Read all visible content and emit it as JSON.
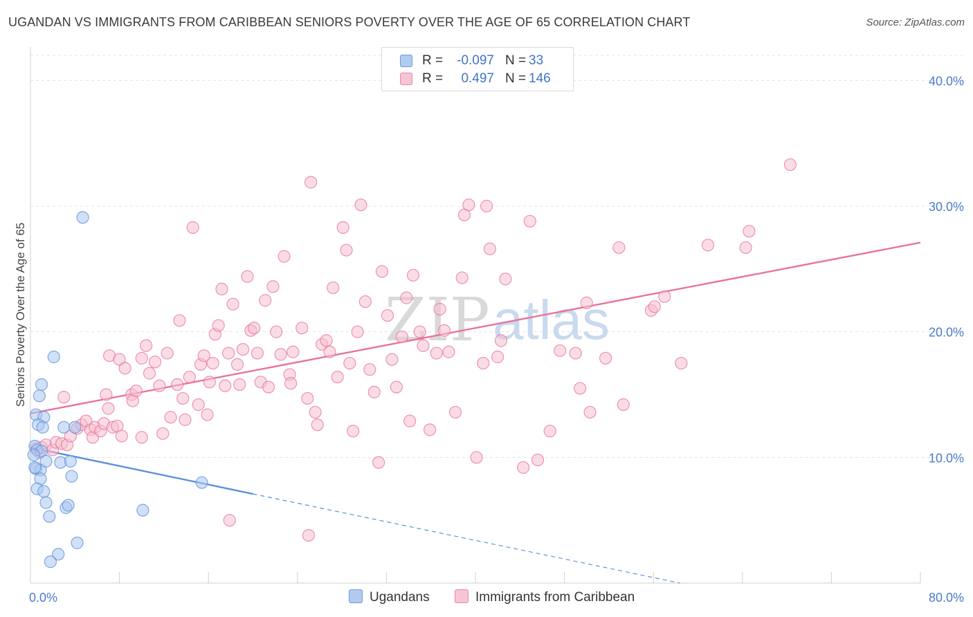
{
  "chart_data": {
    "type": "scatter",
    "title": "UGANDAN VS IMMIGRANTS FROM CARIBBEAN SENIORS POVERTY OVER THE AGE OF 65 CORRELATION CHART",
    "source": "Source: ZipAtlas.com",
    "xlabel": "",
    "ylabel": "Seniors Poverty Over the Age of 65",
    "xlim": [
      0,
      80
    ],
    "ylim": [
      0,
      42
    ],
    "x_tick_labels": [
      "0.0%",
      "80.0%"
    ],
    "y_ticks": [
      10,
      20,
      30,
      40
    ],
    "y_tick_labels": [
      "10.0%",
      "20.0%",
      "30.0%",
      "40.0%"
    ],
    "grid": true,
    "watermark": [
      "ZIP",
      "atlas"
    ],
    "legend": {
      "rows": [
        {
          "r_label": "R =",
          "r_value": "-0.097",
          "n_label": "N =",
          "n_value": "33"
        },
        {
          "r_label": "R =",
          "r_value": "0.497",
          "n_label": "N =",
          "n_value": "146"
        }
      ]
    },
    "series": [
      {
        "name": "Ugandans",
        "color": "#5b8fd8",
        "fill": "#a9c6ee",
        "trend": {
          "x0": 0,
          "y0": 10.8,
          "x1": 20,
          "y1": 7.1,
          "dash_to_x": 80,
          "dash_to_y": -4.0
        },
        "points": [
          [
            4.7,
            29.1
          ],
          [
            0.5,
            13.4
          ],
          [
            1.0,
            15.8
          ],
          [
            2.1,
            18.0
          ],
          [
            0.8,
            14.9
          ],
          [
            1.2,
            13.2
          ],
          [
            0.7,
            12.6
          ],
          [
            1.1,
            12.4
          ],
          [
            3.0,
            12.4
          ],
          [
            4.0,
            12.4
          ],
          [
            0.4,
            10.9
          ],
          [
            0.6,
            10.6
          ],
          [
            1.0,
            10.5
          ],
          [
            0.5,
            9.1
          ],
          [
            0.9,
            9.0
          ],
          [
            1.4,
            9.7
          ],
          [
            2.7,
            9.6
          ],
          [
            3.6,
            9.7
          ],
          [
            0.4,
            9.2
          ],
          [
            0.9,
            8.3
          ],
          [
            3.7,
            8.5
          ],
          [
            0.6,
            7.5
          ],
          [
            1.2,
            7.3
          ],
          [
            1.4,
            6.4
          ],
          [
            3.2,
            6.0
          ],
          [
            3.4,
            6.2
          ],
          [
            1.7,
            5.3
          ],
          [
            10.1,
            5.8
          ],
          [
            15.4,
            8.0
          ],
          [
            4.2,
            3.2
          ],
          [
            2.5,
            2.3
          ],
          [
            1.8,
            1.7
          ],
          [
            0.3,
            10.2
          ]
        ]
      },
      {
        "name": "Immigrants from Caribbean",
        "color": "#e8739a",
        "fill": "#f6bfd0",
        "trend": {
          "x0": 0,
          "y0": 13.5,
          "x1": 80,
          "y1": 27.1
        },
        "points": [
          [
            0.5,
            10.7
          ],
          [
            0.8,
            10.4
          ],
          [
            1.0,
            10.8
          ],
          [
            1.4,
            11.0
          ],
          [
            2.0,
            10.6
          ],
          [
            2.3,
            11.2
          ],
          [
            2.8,
            11.1
          ],
          [
            3.3,
            11.0
          ],
          [
            3.6,
            11.7
          ],
          [
            4.2,
            12.3
          ],
          [
            4.6,
            12.6
          ],
          [
            5.0,
            12.9
          ],
          [
            5.4,
            12.2
          ],
          [
            5.6,
            11.6
          ],
          [
            5.8,
            12.4
          ],
          [
            6.3,
            12.1
          ],
          [
            6.6,
            12.7
          ],
          [
            7.4,
            12.4
          ],
          [
            3.0,
            14.8
          ],
          [
            6.8,
            15.0
          ],
          [
            7.0,
            13.9
          ],
          [
            7.8,
            12.5
          ],
          [
            8.2,
            11.7
          ],
          [
            9.1,
            15.0
          ],
          [
            9.2,
            14.5
          ],
          [
            9.5,
            15.3
          ],
          [
            10.0,
            11.6
          ],
          [
            7.1,
            18.1
          ],
          [
            8.0,
            17.8
          ],
          [
            8.5,
            17.1
          ],
          [
            10.0,
            17.9
          ],
          [
            10.4,
            18.9
          ],
          [
            10.7,
            16.7
          ],
          [
            11.2,
            17.6
          ],
          [
            11.6,
            15.7
          ],
          [
            12.3,
            18.3
          ],
          [
            11.9,
            11.9
          ],
          [
            12.6,
            13.2
          ],
          [
            13.2,
            15.8
          ],
          [
            13.4,
            20.9
          ],
          [
            13.7,
            14.7
          ],
          [
            13.9,
            13.0
          ],
          [
            14.3,
            16.4
          ],
          [
            14.6,
            28.3
          ],
          [
            15.1,
            14.2
          ],
          [
            15.3,
            17.4
          ],
          [
            15.6,
            18.1
          ],
          [
            15.9,
            13.4
          ],
          [
            16.1,
            16.0
          ],
          [
            16.4,
            17.5
          ],
          [
            16.6,
            19.8
          ],
          [
            16.9,
            20.5
          ],
          [
            17.2,
            23.4
          ],
          [
            17.5,
            15.7
          ],
          [
            17.8,
            18.3
          ],
          [
            18.2,
            22.2
          ],
          [
            18.6,
            17.4
          ],
          [
            18.8,
            15.8
          ],
          [
            19.1,
            18.6
          ],
          [
            19.5,
            24.4
          ],
          [
            19.8,
            20.1
          ],
          [
            20.1,
            20.3
          ],
          [
            20.4,
            18.3
          ],
          [
            20.7,
            16.0
          ],
          [
            21.1,
            22.5
          ],
          [
            21.4,
            15.6
          ],
          [
            21.8,
            23.6
          ],
          [
            22.1,
            20.0
          ],
          [
            22.5,
            18.2
          ],
          [
            22.8,
            26.0
          ],
          [
            23.3,
            16.6
          ],
          [
            23.4,
            15.9
          ],
          [
            23.6,
            18.4
          ],
          [
            24.4,
            20.3
          ],
          [
            24.9,
            14.7
          ],
          [
            25.2,
            31.9
          ],
          [
            25.6,
            13.6
          ],
          [
            25.8,
            12.6
          ],
          [
            26.2,
            19.0
          ],
          [
            26.6,
            19.3
          ],
          [
            26.9,
            18.4
          ],
          [
            27.2,
            23.5
          ],
          [
            27.6,
            16.4
          ],
          [
            28.1,
            28.3
          ],
          [
            28.4,
            26.5
          ],
          [
            28.7,
            17.5
          ],
          [
            29.0,
            12.1
          ],
          [
            29.4,
            20.0
          ],
          [
            29.7,
            30.1
          ],
          [
            30.1,
            22.4
          ],
          [
            30.5,
            17.0
          ],
          [
            30.9,
            15.2
          ],
          [
            31.3,
            9.6
          ],
          [
            31.6,
            24.8
          ],
          [
            32.1,
            21.3
          ],
          [
            32.5,
            17.8
          ],
          [
            32.9,
            15.6
          ],
          [
            33.4,
            19.6
          ],
          [
            33.8,
            22.7
          ],
          [
            34.1,
            12.9
          ],
          [
            34.4,
            24.5
          ],
          [
            35.0,
            20.0
          ],
          [
            35.3,
            18.9
          ],
          [
            35.9,
            12.2
          ],
          [
            36.5,
            18.3
          ],
          [
            36.8,
            21.8
          ],
          [
            37.2,
            20.1
          ],
          [
            37.6,
            18.4
          ],
          [
            38.2,
            13.6
          ],
          [
            38.8,
            24.3
          ],
          [
            39.0,
            29.3
          ],
          [
            39.4,
            30.1
          ],
          [
            40.1,
            10.0
          ],
          [
            40.7,
            17.5
          ],
          [
            41.0,
            30.0
          ],
          [
            41.3,
            26.6
          ],
          [
            42.0,
            18.0
          ],
          [
            42.3,
            19.3
          ],
          [
            42.7,
            24.2
          ],
          [
            44.3,
            9.2
          ],
          [
            44.9,
            28.8
          ],
          [
            45.6,
            9.8
          ],
          [
            46.7,
            12.1
          ],
          [
            47.6,
            18.5
          ],
          [
            49.0,
            18.3
          ],
          [
            49.4,
            15.5
          ],
          [
            50.0,
            22.3
          ],
          [
            50.3,
            13.6
          ],
          [
            51.7,
            17.9
          ],
          [
            52.9,
            26.7
          ],
          [
            53.3,
            14.2
          ],
          [
            55.8,
            21.7
          ],
          [
            56.1,
            22.0
          ],
          [
            57.0,
            22.8
          ],
          [
            58.5,
            17.5
          ],
          [
            60.9,
            26.9
          ],
          [
            64.3,
            26.7
          ],
          [
            64.6,
            28.0
          ],
          [
            68.3,
            33.3
          ],
          [
            17.9,
            5.0
          ],
          [
            25.0,
            3.8
          ]
        ]
      }
    ]
  }
}
